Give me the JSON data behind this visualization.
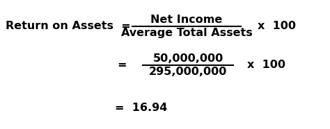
{
  "bg_color": "#ffffff",
  "text_color": "#000000",
  "line1_left": "Return on Assets  =",
  "line1_numerator": "Net Income",
  "line1_denominator": "Average Total Assets",
  "line1_x100": "x  100",
  "line2_eq": "=",
  "line2_numerator": "50,000,000",
  "line2_denominator": "295,000,000",
  "line2_x100": "x  100",
  "line3_result": "=  16.94",
  "fontsize": 11.5
}
